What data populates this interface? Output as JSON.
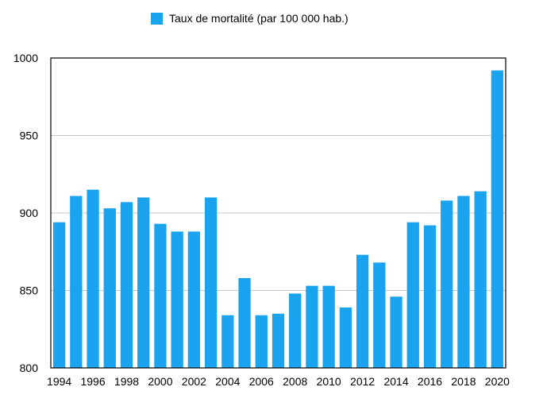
{
  "chart_data": {
    "type": "bar",
    "legend": {
      "position": "top-center",
      "entries": [
        {
          "label": "Taux de mortalité (par 100 000 hab.)",
          "color": "#1aa3ef"
        }
      ]
    },
    "categories": [
      "1994",
      "1995",
      "1996",
      "1997",
      "1998",
      "1999",
      "2000",
      "2001",
      "2002",
      "2003",
      "2004",
      "2005",
      "2006",
      "2007",
      "2008",
      "2009",
      "2010",
      "2011",
      "2012",
      "2013",
      "2014",
      "2015",
      "2016",
      "2017",
      "2018",
      "2019",
      "2020"
    ],
    "x_tick_labels": [
      "1994",
      "",
      "1996",
      "",
      "1998",
      "",
      "2000",
      "",
      "2002",
      "",
      "2004",
      "",
      "2006",
      "",
      "2008",
      "",
      "2010",
      "",
      "2012",
      "",
      "2014",
      "",
      "2016",
      "",
      "2018",
      "",
      "2020"
    ],
    "series": [
      {
        "name": "Taux de mortalité (par 100 000 hab.)",
        "color": "#1aa3ef",
        "values": [
          894,
          911,
          915,
          903,
          907,
          910,
          893,
          888,
          888,
          910,
          834,
          858,
          834,
          835,
          848,
          853,
          853,
          839,
          873,
          868,
          846,
          894,
          892,
          908,
          911,
          914,
          992
        ]
      }
    ],
    "ylim": [
      800,
      1000
    ],
    "yticks": [
      800,
      850,
      900,
      950,
      1000
    ],
    "grid": true
  }
}
